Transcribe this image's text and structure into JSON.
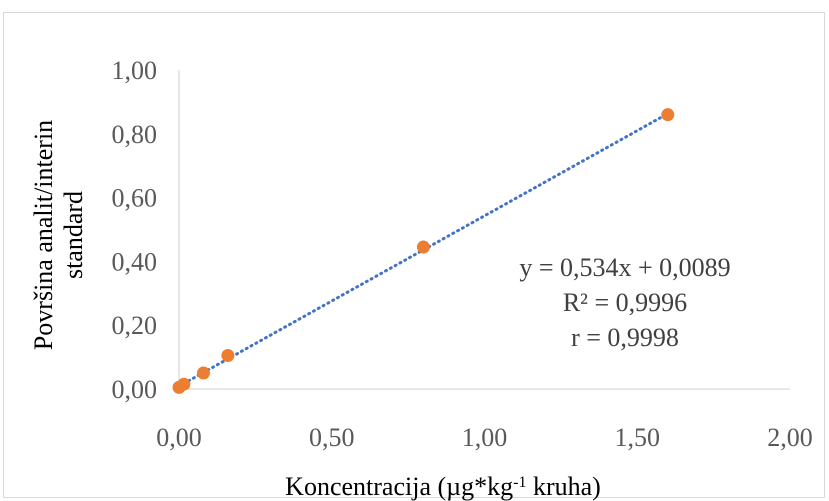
{
  "chart_data": {
    "type": "scatter",
    "title": "",
    "xlabel_main": "Koncentracija (µg*kg",
    "xlabel_sup": "-1",
    "xlabel_tail": " kruha)",
    "ylabel_line1": "Površina analit/interin",
    "ylabel_line2": "standard",
    "xlim": [
      0,
      2.0
    ],
    "ylim": [
      0,
      1.0
    ],
    "x_ticks": [
      0,
      0.5,
      1.0,
      1.5,
      2.0
    ],
    "x_tick_labels": [
      "0,00",
      "0,50",
      "1,00",
      "1,50",
      "2,00"
    ],
    "y_ticks": [
      0,
      0.2,
      0.4,
      0.6,
      0.8,
      1.0
    ],
    "y_tick_labels": [
      "0,00",
      "0,20",
      "0,40",
      "0,60",
      "0,80",
      "1,00"
    ],
    "grid": false,
    "legend": "none",
    "series": [
      {
        "points": [
          {
            "x": 0.0,
            "y": 0.005
          },
          {
            "x": 0.016,
            "y": 0.015
          },
          {
            "x": 0.08,
            "y": 0.05
          },
          {
            "x": 0.16,
            "y": 0.105
          },
          {
            "x": 0.8,
            "y": 0.445
          },
          {
            "x": 1.6,
            "y": 0.86
          }
        ],
        "color": "#ED7D31"
      }
    ],
    "trendline": {
      "slope": 0.534,
      "intercept": 0.0089,
      "x_range": [
        0,
        1.6
      ],
      "style": "dotted",
      "color": "#4472C4"
    },
    "annotations": [
      "y = 0,534x + 0,0089",
      "R² = 0,9996",
      "r = 0,9998"
    ]
  }
}
